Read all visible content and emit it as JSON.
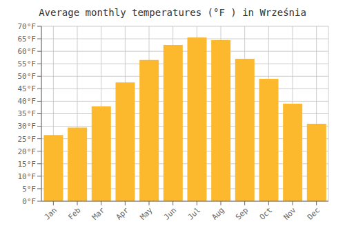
{
  "chart_data": {
    "type": "bar",
    "title": "Average monthly temperatures (°F ) in Września",
    "categories": [
      "Jan",
      "Feb",
      "Mar",
      "Apr",
      "May",
      "Jun",
      "Jul",
      "Aug",
      "Sep",
      "Oct",
      "Nov",
      "Dec"
    ],
    "values": [
      26.5,
      29.5,
      38.0,
      47.5,
      56.5,
      62.5,
      65.5,
      64.5,
      57.0,
      49.0,
      39.0,
      31.0
    ],
    "color": "#FDB92E",
    "ylim": [
      0,
      70
    ],
    "yticks": [
      {
        "value": 0,
        "label": "0°F"
      },
      {
        "value": 5,
        "label": "5°F"
      },
      {
        "value": 10,
        "label": "10°F"
      },
      {
        "value": 15,
        "label": "15°F"
      },
      {
        "value": 20,
        "label": "20°F"
      },
      {
        "value": 25,
        "label": "25°F"
      },
      {
        "value": 30,
        "label": "30°F"
      },
      {
        "value": 35,
        "label": "35°F"
      },
      {
        "value": 40,
        "label": "40°F"
      },
      {
        "value": 45,
        "label": "45°F"
      },
      {
        "value": 50,
        "label": "50°F"
      },
      {
        "value": 55,
        "label": "55°F"
      },
      {
        "value": 60,
        "label": "60°F"
      },
      {
        "value": 65,
        "label": "65°F"
      },
      {
        "value": 70,
        "label": "70°F"
      }
    ],
    "grid": true
  }
}
